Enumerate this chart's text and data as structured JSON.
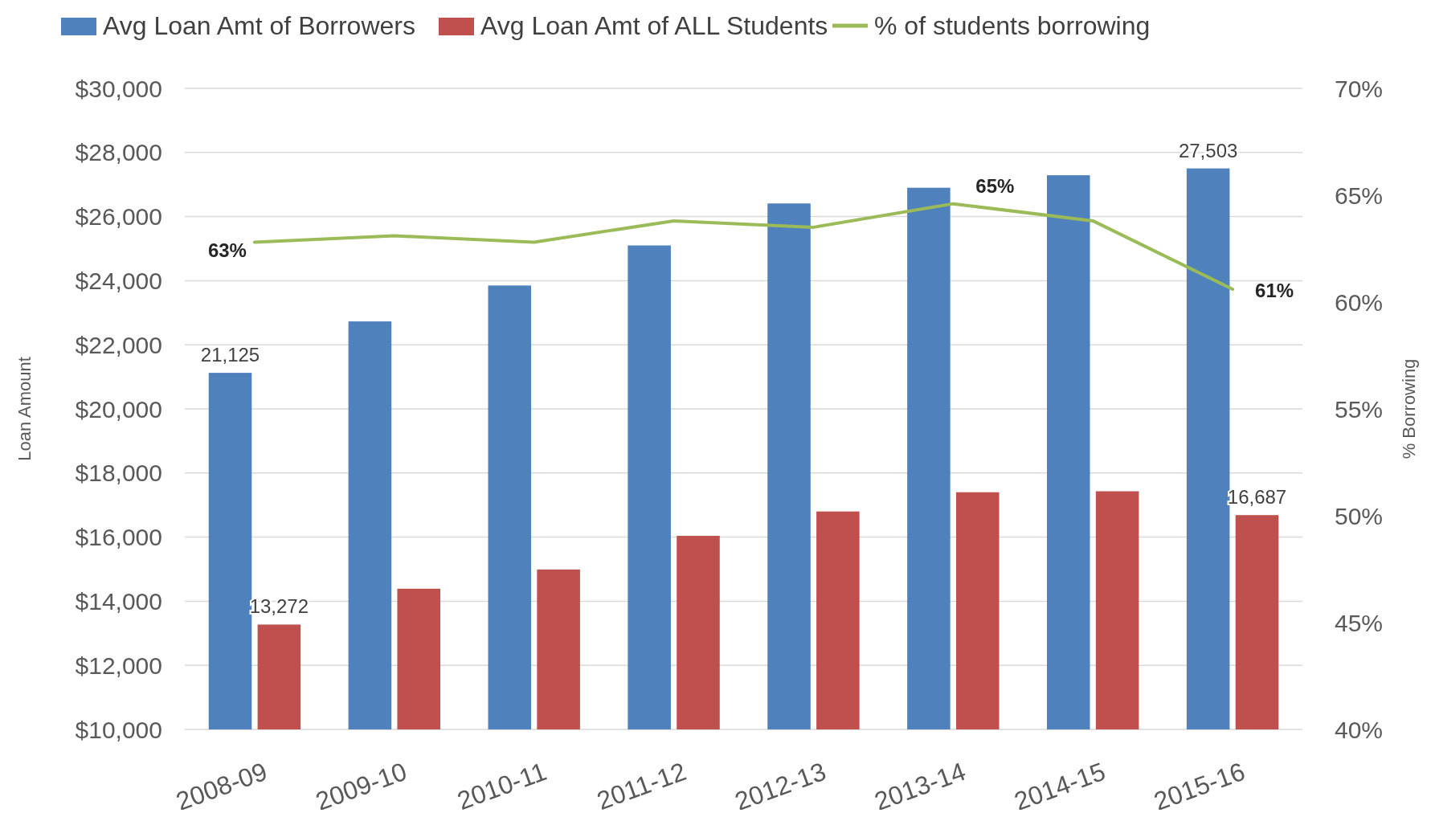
{
  "chart_data": {
    "type": "bar",
    "categories": [
      "2008-09",
      "2009-10",
      "2010-11",
      "2011-12",
      "2012-13",
      "2013-14",
      "2014-15",
      "2015-16"
    ],
    "ylabel": "Loan Amount",
    "y2label": "% Borrowing",
    "ylim": [
      10000,
      30000
    ],
    "yticks": [
      {
        "value": 10000,
        "label": "$10,000"
      },
      {
        "value": 12000,
        "label": "$12,000"
      },
      {
        "value": 14000,
        "label": "$14,000"
      },
      {
        "value": 16000,
        "label": "$16,000"
      },
      {
        "value": 18000,
        "label": "$18,000"
      },
      {
        "value": 20000,
        "label": "$20,000"
      },
      {
        "value": 22000,
        "label": "$22,000"
      },
      {
        "value": 24000,
        "label": "$24,000"
      },
      {
        "value": 26000,
        "label": "$26,000"
      },
      {
        "value": 28000,
        "label": "$28,000"
      },
      {
        "value": 30000,
        "label": "$30,000"
      }
    ],
    "y2lim": [
      40,
      70
    ],
    "y2ticks": [
      {
        "value": 40,
        "label": "40%"
      },
      {
        "value": 45,
        "label": "45%"
      },
      {
        "value": 50,
        "label": "50%"
      },
      {
        "value": 55,
        "label": "55%"
      },
      {
        "value": 60,
        "label": "60%"
      },
      {
        "value": 65,
        "label": "65%"
      },
      {
        "value": 70,
        "label": "70%"
      }
    ],
    "grid": "y",
    "legend": "top",
    "series": [
      {
        "name": "Avg Loan Amt of Borrowers",
        "color": "#4f81bd",
        "values": [
          21125,
          22730,
          23850,
          25100,
          26410,
          26900,
          27290,
          27503
        ],
        "value_labels": [
          "21,125",
          null,
          null,
          null,
          null,
          null,
          null,
          "27,503"
        ]
      },
      {
        "name": "Avg Loan Amt of ALL Students",
        "color": "#c0504d",
        "values": [
          13272,
          14390,
          14990,
          16040,
          16800,
          17400,
          17430,
          16687
        ],
        "value_labels": [
          "13,272",
          null,
          null,
          null,
          null,
          null,
          null,
          "16,687"
        ]
      },
      {
        "name": "% of students borrowing",
        "type": "line",
        "axis": "y2",
        "color": "#9bbb59",
        "values": [
          62.8,
          63.1,
          62.8,
          63.8,
          63.5,
          64.6,
          63.8,
          60.6
        ],
        "value_labels": [
          "63%",
          null,
          null,
          null,
          null,
          "65%",
          null,
          "61%"
        ]
      }
    ]
  }
}
